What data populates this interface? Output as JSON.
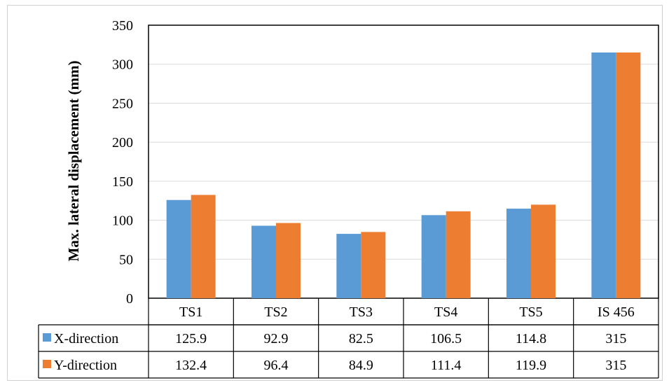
{
  "chart_data": {
    "type": "bar",
    "title": "",
    "xlabel": "",
    "ylabel": "Max. lateral displacement (mm)",
    "ylim": [
      0,
      350
    ],
    "yticks": [
      0,
      50,
      100,
      150,
      200,
      250,
      300,
      350
    ],
    "grid": true,
    "legend": "data-table",
    "categories": [
      "TS1",
      "TS2",
      "TS3",
      "TS4",
      "TS5",
      "IS 456"
    ],
    "series": [
      {
        "name": "X-direction",
        "color": "#5b9bd5",
        "values": [
          125.9,
          92.9,
          82.5,
          106.5,
          114.8,
          315
        ],
        "labels": [
          "125.9",
          "92.9",
          "82.5",
          "106.5",
          "114.8",
          "315"
        ]
      },
      {
        "name": "Y-direction",
        "color": "#ed7d31",
        "values": [
          132.4,
          96.4,
          84.9,
          111.4,
          119.9,
          315
        ],
        "labels": [
          "132.4",
          "96.4",
          "84.9",
          "111.4",
          "119.9",
          "315"
        ]
      }
    ]
  }
}
